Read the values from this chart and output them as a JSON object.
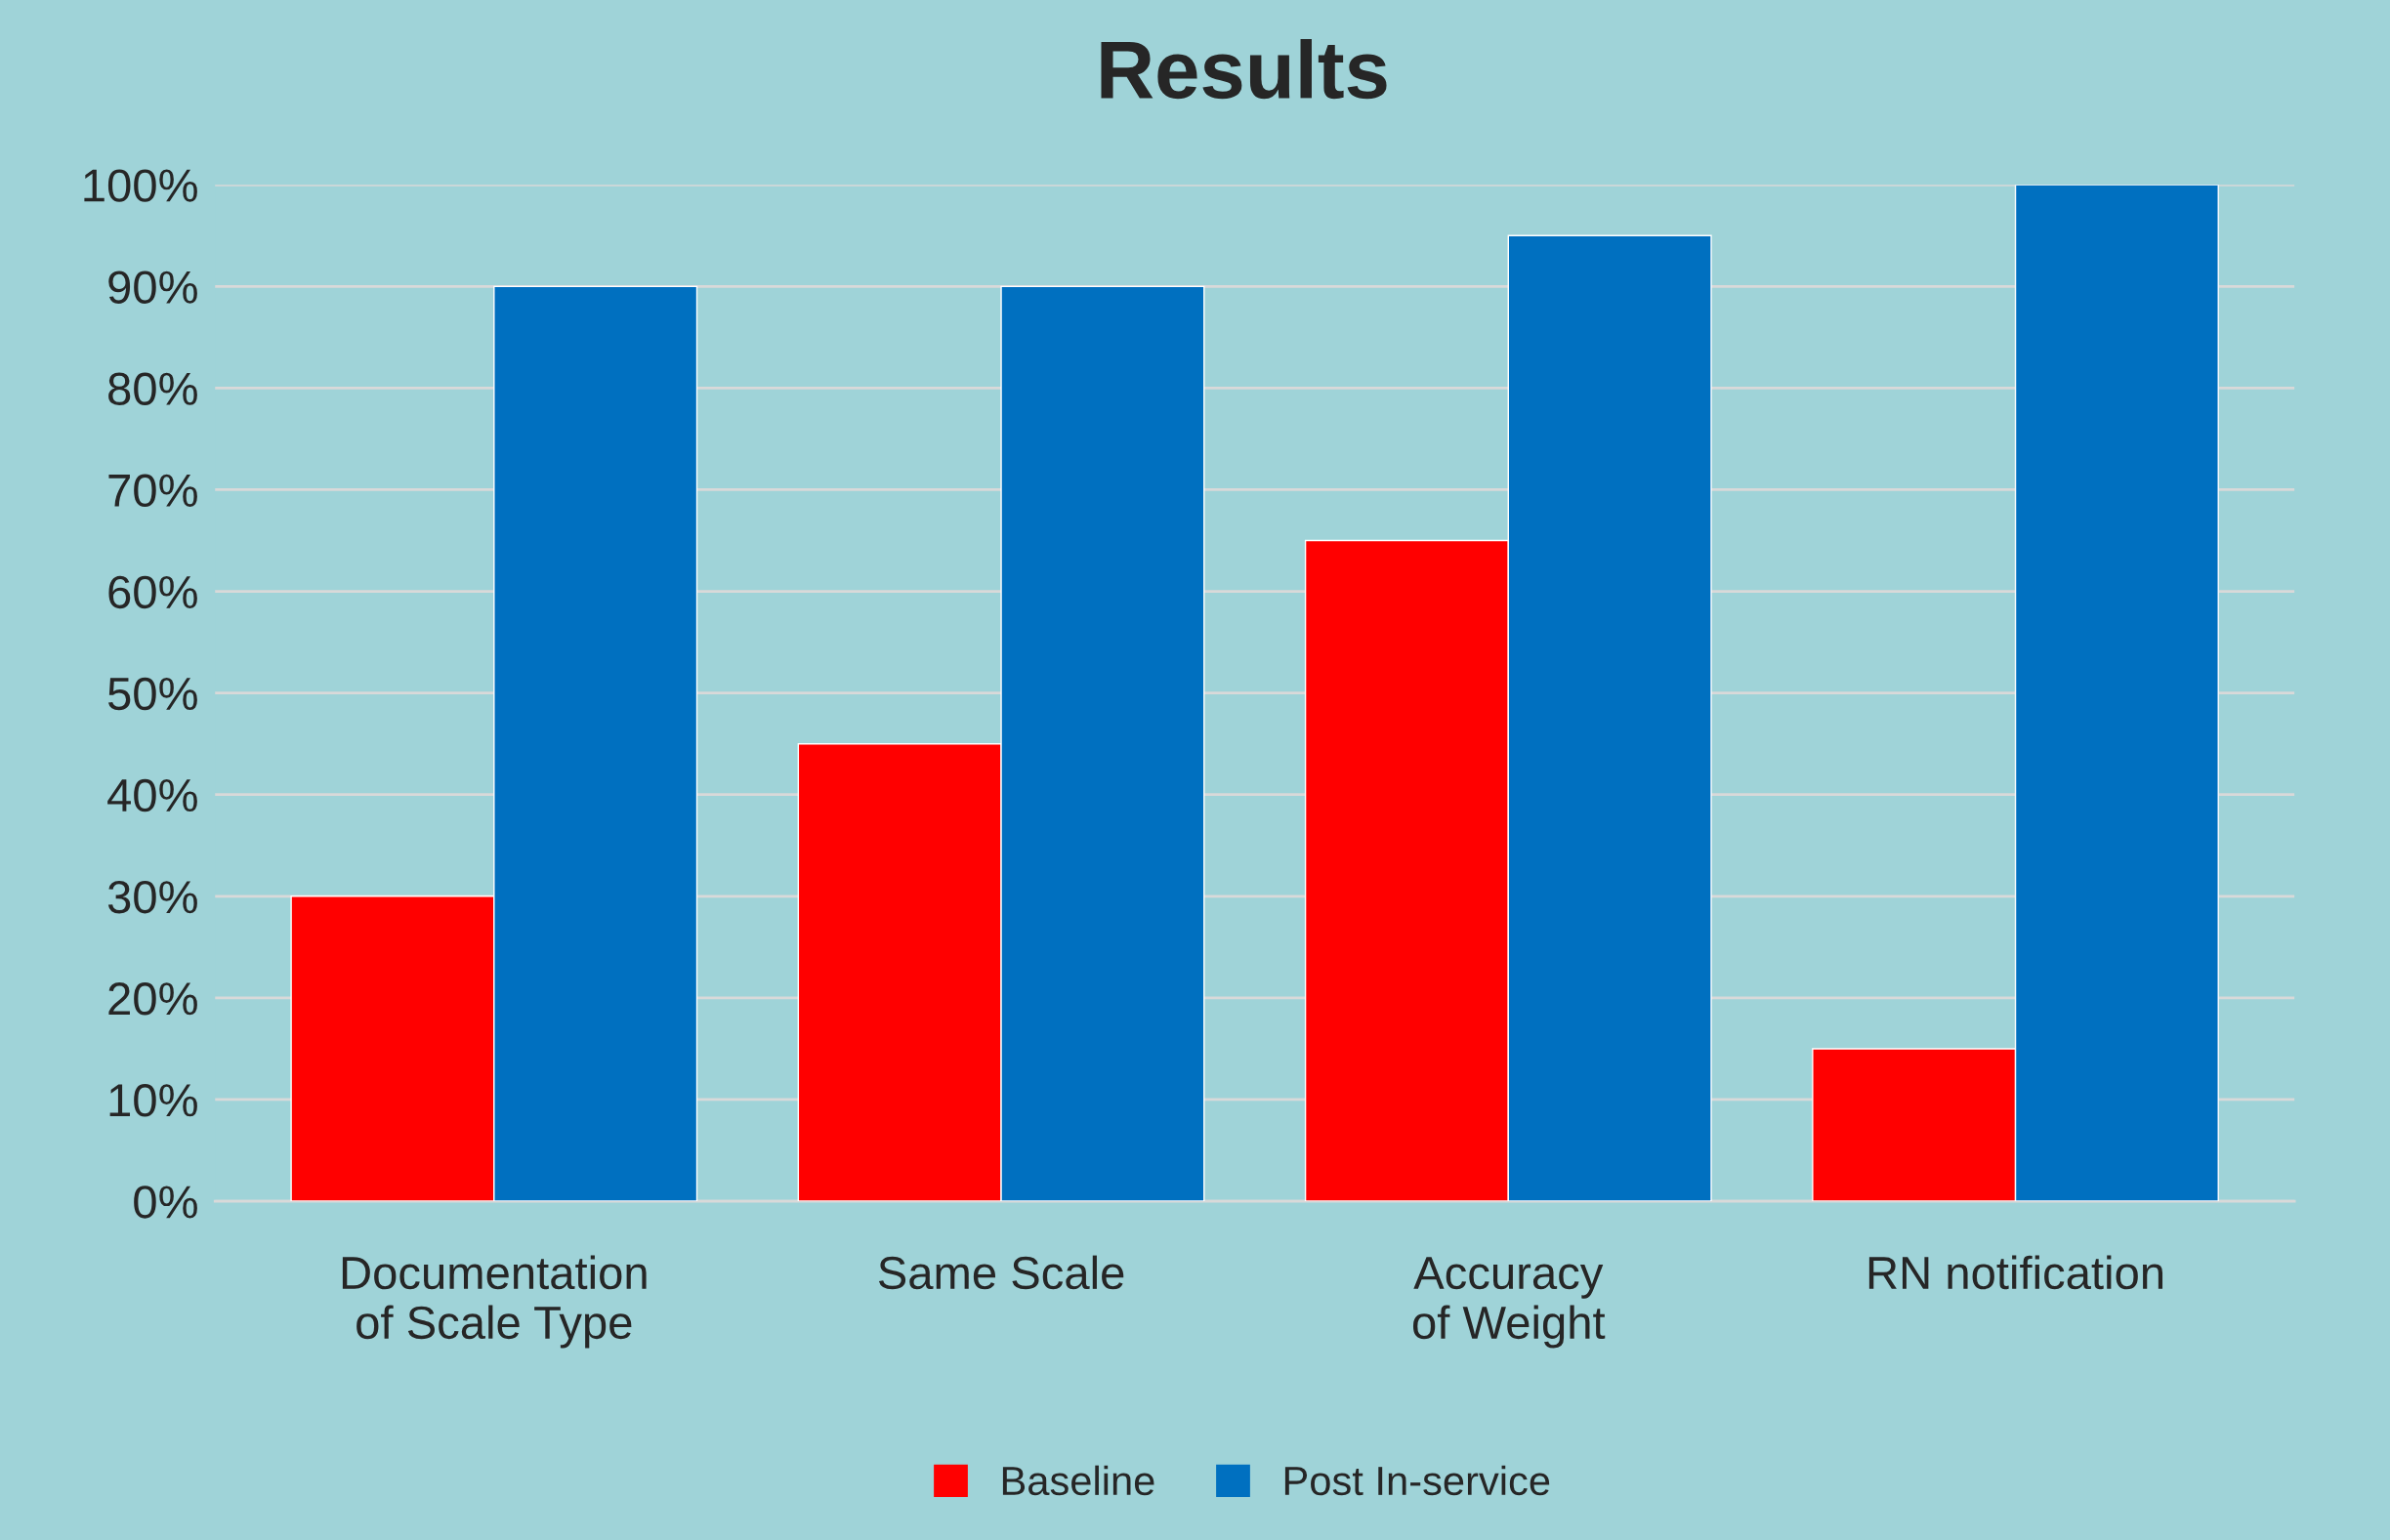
{
  "chart_data": {
    "type": "bar",
    "title": "Results",
    "categories": [
      "Documentation of Scale Type",
      "Same Scale",
      "Accuracy of Weight",
      "RN notification"
    ],
    "series": [
      {
        "name": "Baseline",
        "color": "#ff0000",
        "values": [
          30,
          45,
          65,
          15
        ]
      },
      {
        "name": "Post In-service",
        "color": "#0070c0",
        "values": [
          90,
          90,
          95,
          100
        ]
      }
    ],
    "ylim": [
      0,
      100
    ],
    "yticks": [
      {
        "value": 0,
        "label": "0%"
      },
      {
        "value": 10,
        "label": "10%"
      },
      {
        "value": 20,
        "label": "20%"
      },
      {
        "value": 30,
        "label": "30%"
      },
      {
        "value": 40,
        "label": "40%"
      },
      {
        "value": 50,
        "label": "50%"
      },
      {
        "value": 60,
        "label": "60%"
      },
      {
        "value": 70,
        "label": "70%"
      },
      {
        "value": 80,
        "label": "80%"
      },
      {
        "value": 90,
        "label": "90%"
      },
      {
        "value": 100,
        "label": "100%"
      }
    ],
    "grid": "y",
    "legend": "bottom"
  }
}
